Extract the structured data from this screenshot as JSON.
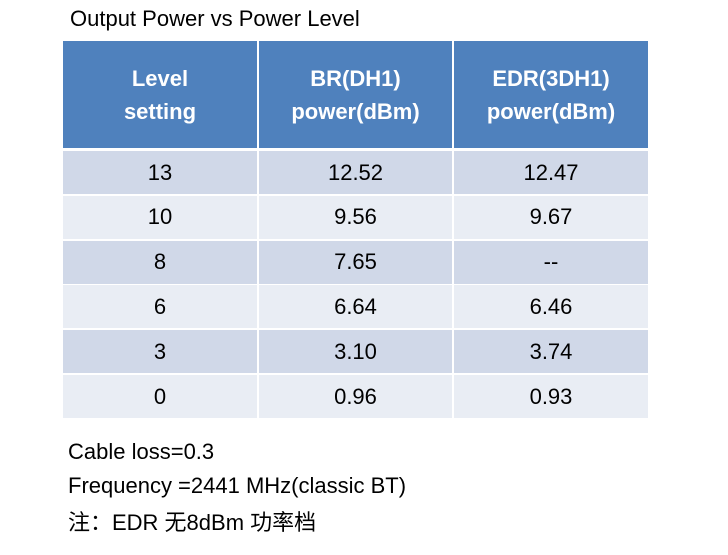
{
  "title": "Output Power vs Power Level",
  "table": {
    "header": [
      "Level\nsetting",
      "BR(DH1)\npower(dBm)",
      "EDR(3DH1)\npower(dBm)"
    ],
    "rows": [
      [
        "13",
        "12.52",
        "12.47"
      ],
      [
        "10",
        "9.56",
        "9.67"
      ],
      [
        "8",
        "7.65",
        "--"
      ],
      [
        "6",
        "6.64",
        "6.46"
      ],
      [
        "3",
        "3.10",
        "3.74"
      ],
      [
        "0",
        "0.96",
        "0.93"
      ]
    ]
  },
  "notes": [
    "Cable loss=0.3",
    "Frequency =2441 MHz(classic BT)",
    "注：EDR 无8dBm 功率档"
  ]
}
